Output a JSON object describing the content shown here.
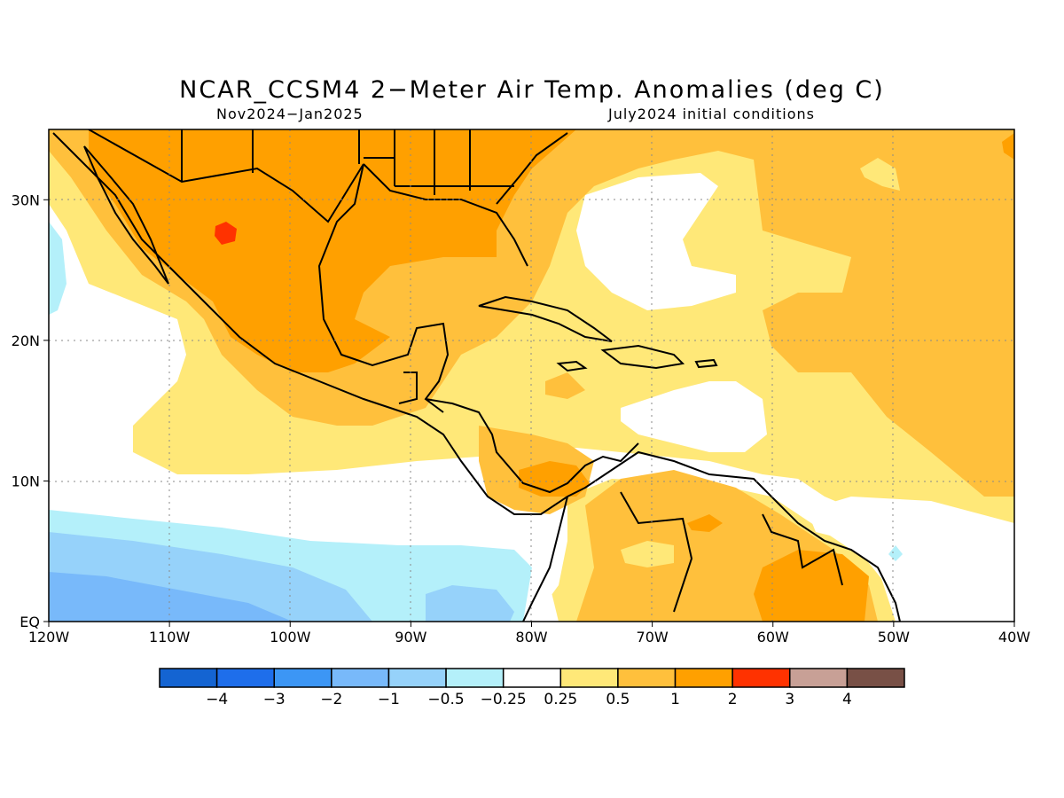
{
  "title": "NCAR_CCSM4 2−Meter Air Temp. Anomalies (deg C)",
  "subtitle_left": "Nov2024−Jan2025",
  "subtitle_right": "July2024 initial conditions",
  "map": {
    "lon_range": [
      -120,
      -40
    ],
    "lat_range": [
      0,
      35
    ],
    "lon_ticks": [
      {
        "value": -120,
        "label": "120W"
      },
      {
        "value": -110,
        "label": "110W"
      },
      {
        "value": -100,
        "label": "100W"
      },
      {
        "value": -90,
        "label": "90W"
      },
      {
        "value": -80,
        "label": "80W"
      },
      {
        "value": -70,
        "label": "70W"
      },
      {
        "value": -60,
        "label": "60W"
      },
      {
        "value": -50,
        "label": "50W"
      },
      {
        "value": -40,
        "label": "40W"
      }
    ],
    "lat_ticks": [
      {
        "value": 0,
        "label": "EQ"
      },
      {
        "value": 10,
        "label": "10N"
      },
      {
        "value": 20,
        "label": "20N"
      },
      {
        "value": 30,
        "label": "30N"
      }
    ],
    "grid": true
  },
  "colorbar": {
    "colors": [
      "#1464d2",
      "#1e6eeb",
      "#3c96f5",
      "#78b9fa",
      "#96d2fa",
      "#b4f0fa",
      "#ffffff",
      "#ffe878",
      "#ffc03c",
      "#ffa000",
      "#ff3200",
      "#c8a096",
      "#785046"
    ],
    "labels": [
      "−4",
      "−3",
      "−2",
      "−1",
      "−0.5",
      "−0.25",
      "0.25",
      "0.5",
      "1",
      "2",
      "3",
      "4"
    ]
  }
}
